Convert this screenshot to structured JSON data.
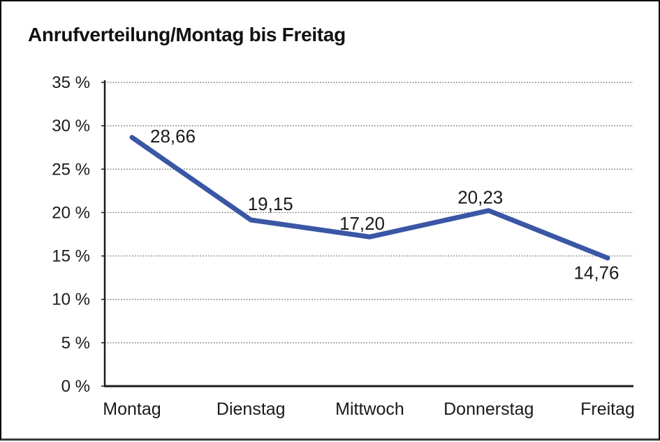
{
  "title": "Anrufverteilung/Montag bis Freitag",
  "chart_data": {
    "type": "line",
    "title": "Anrufverteilung/Montag bis Freitag",
    "categories": [
      "Montag",
      "Dienstag",
      "Mittwoch",
      "Donnerstag",
      "Freitag"
    ],
    "values": [
      28.66,
      19.15,
      17.2,
      20.23,
      14.76
    ],
    "point_labels": [
      "28,66",
      "19,15",
      "17,20",
      "20,23",
      "14,76"
    ],
    "xlabel": "",
    "ylabel": "",
    "ylim": [
      0,
      35
    ],
    "y_tick_step": 5,
    "y_tick_labels": [
      "0 %",
      "5 %",
      "10 %",
      "15 %",
      "20 %",
      "25 %",
      "30 %",
      "35 %"
    ],
    "grid": "horizontal-dotted",
    "legend_position": "none"
  },
  "colors": {
    "line": "#3A57A5",
    "axis": "#1a1a1a",
    "gridline": "#555555",
    "text": "#1a1a1a",
    "background": "#ffffff",
    "border": "#000000"
  }
}
